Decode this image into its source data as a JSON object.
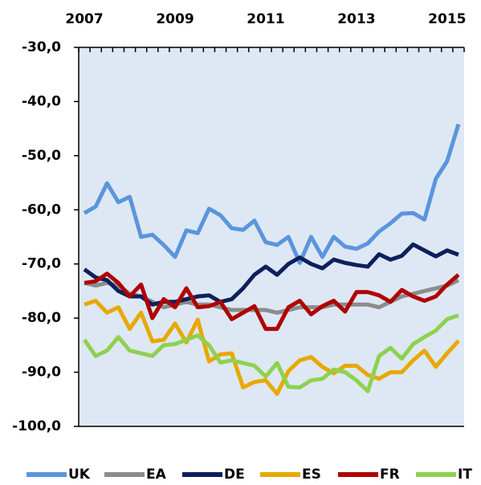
{
  "chart_data": {
    "type": "line",
    "categories": [
      "2007",
      null,
      null,
      null,
      null,
      null,
      null,
      null,
      "2009",
      null,
      null,
      null,
      null,
      null,
      null,
      null,
      "2011",
      null,
      null,
      null,
      null,
      null,
      null,
      null,
      "2013",
      null,
      null,
      null,
      null,
      null,
      null,
      null,
      "2015",
      null
    ],
    "ylim": [
      -100,
      -30
    ],
    "yticks": [
      {
        "value": -100,
        "label": "-100,0"
      },
      {
        "value": -90,
        "label": "-90,0"
      },
      {
        "value": -80,
        "label": "-80,0"
      },
      {
        "value": -70,
        "label": "-70,0"
      },
      {
        "value": -60,
        "label": "-60,0"
      },
      {
        "value": -50,
        "label": "-50,0"
      },
      {
        "value": -40,
        "label": "-40,0"
      },
      {
        "value": -30,
        "label": "-30,0"
      }
    ],
    "grid": true,
    "legend": "bottom",
    "series": [
      {
        "name": "UK",
        "color": "#5b95dc",
        "values": [
          -60.6,
          -59.4,
          -55.1,
          -58.6,
          -57.6,
          -65,
          -64.6,
          -66.5,
          -68.7,
          -63.8,
          -64.3,
          -59.8,
          -61,
          -63.4,
          -63.7,
          -62,
          -66,
          -66.5,
          -65,
          -69.8,
          -65,
          -68.7,
          -65,
          -66.8,
          -67.2,
          -66.2,
          -64,
          -62.5,
          -60.7,
          -60.6,
          -61.8,
          -54.3,
          -51,
          -44.2
        ]
      },
      {
        "name": "EA",
        "color": "#8c8c8c",
        "values": [
          -73.5,
          -74,
          -73.5,
          -74,
          -75.5,
          -76,
          -77,
          -78,
          -77.5,
          -77,
          -77.5,
          -77.5,
          -78,
          -78.5,
          -78.5,
          -78.5,
          -78.5,
          -79,
          -78.5,
          -78,
          -78,
          -78,
          -77.5,
          -77.5,
          -77.5,
          -77.5,
          -78,
          -77,
          -76,
          -75.5,
          -75,
          -74.5,
          -74,
          -73
        ]
      },
      {
        "name": "DE",
        "color": "#0d1f5c",
        "values": [
          -71,
          -72.5,
          -73,
          -75,
          -76,
          -76,
          -77.5,
          -77,
          -77,
          -76.5,
          -76,
          -75.8,
          -77,
          -76.5,
          -74.5,
          -72,
          -70.5,
          -72,
          -70,
          -68.8,
          -70,
          -70.8,
          -69.2,
          -69.8,
          -70.2,
          -70.5,
          -68.2,
          -69.2,
          -68.5,
          -66.4,
          -67.5,
          -68.6,
          -67.5,
          -68.3
        ]
      },
      {
        "name": "ES",
        "color": "#e8a800",
        "values": [
          -77.5,
          -76.8,
          -79,
          -78,
          -82,
          -79,
          -84.3,
          -84,
          -81,
          -84.5,
          -80.3,
          -88,
          -86.7,
          -86.5,
          -92.8,
          -91.8,
          -91.5,
          -94,
          -89.8,
          -87.8,
          -87.2,
          -89,
          -90.2,
          -88.8,
          -88.8,
          -90.5,
          -91.2,
          -90,
          -90,
          -87.8,
          -86,
          -89,
          -86.5,
          -84.2
        ]
      },
      {
        "name": "FR",
        "color": "#b00000",
        "values": [
          -73.5,
          -73.2,
          -71.8,
          -73.5,
          -76,
          -73.8,
          -80,
          -76.5,
          -78,
          -74.5,
          -78,
          -77.8,
          -77,
          -80.2,
          -79,
          -77.8,
          -82,
          -82,
          -78,
          -76.8,
          -79.3,
          -77.8,
          -76.8,
          -78.8,
          -75.2,
          -75.2,
          -75.8,
          -77,
          -74.8,
          -76,
          -76.8,
          -76,
          -73.8,
          -72
        ]
      },
      {
        "name": "IT",
        "color": "#8fd14f",
        "values": [
          -84,
          -87,
          -86,
          -83.5,
          -86,
          -86.5,
          -87,
          -85,
          -84.8,
          -84,
          -83.2,
          -85,
          -88.2,
          -87.8,
          -88.3,
          -88.8,
          -90.8,
          -88.3,
          -92.7,
          -92.8,
          -91.5,
          -91.2,
          -89.5,
          -90,
          -91.5,
          -93.5,
          -87,
          -85.5,
          -87.5,
          -84.8,
          -83.5,
          -82.3,
          -80.2,
          -79.5
        ]
      }
    ]
  }
}
